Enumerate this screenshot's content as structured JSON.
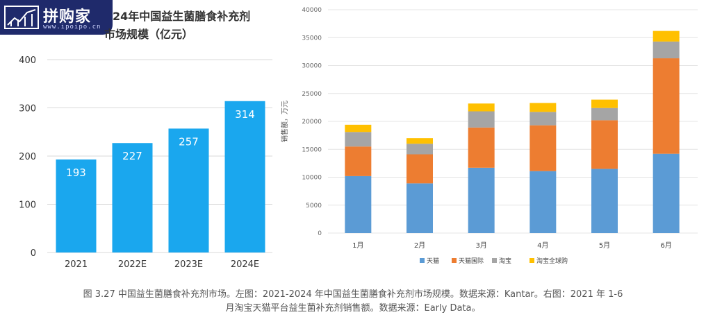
{
  "logo": {
    "text": "拼购家",
    "url": "www.ipoipo.cn"
  },
  "left_chart_title_line1": "24年中国益生菌膳食补充剂",
  "left_chart_title_line2": "市场规模（亿元）",
  "caption_line1": "图 3.27 中国益生菌膳食补充剂市场。左图：2021-2024 年中国益生菌膳食补充剂市场规模。数据来源：Kantar。右图：2021 年 1-6",
  "caption_line2": "月淘宝天猫平台益生菌补充剂销售额。数据来源：Early Data。",
  "colors": {
    "left_bar": "#1aa7ee",
    "tmall": "#5b9bd5",
    "tmall_intl": "#ed7d31",
    "taobao": "#a5a5a5",
    "taobao_global": "#ffc000"
  },
  "chart_data": [
    {
      "type": "bar",
      "title": "24年中国益生菌膳食补充剂市场规模（亿元）",
      "categories": [
        "2021",
        "2022E",
        "2023E",
        "2024E"
      ],
      "values": [
        193,
        227,
        257,
        314
      ],
      "ylim": [
        0,
        400
      ],
      "yticks": [
        "0",
        "100",
        "200",
        "300",
        "400"
      ],
      "grid": true
    },
    {
      "type": "bar",
      "stacked": true,
      "ylabel": "销售额，万元",
      "categories": [
        "1月",
        "2月",
        "3月",
        "4月",
        "5月",
        "6月"
      ],
      "ylim": [
        0,
        40000
      ],
      "yticks": [
        "0",
        "5000",
        "10000",
        "15000",
        "20000",
        "25000",
        "30000",
        "35000",
        "40000"
      ],
      "legend_position": "bottom",
      "grid": true,
      "series": [
        {
          "name": "天猫",
          "values": [
            10200,
            8900,
            11700,
            11100,
            11500,
            14200
          ]
        },
        {
          "name": "天猫国际",
          "values": [
            5300,
            5200,
            7200,
            8200,
            8700,
            17100
          ]
        },
        {
          "name": "淘宝",
          "values": [
            2600,
            1900,
            2900,
            2400,
            2200,
            3000
          ]
        },
        {
          "name": "淘宝全球购",
          "values": [
            1300,
            1000,
            1400,
            1600,
            1500,
            1900
          ]
        }
      ]
    }
  ]
}
